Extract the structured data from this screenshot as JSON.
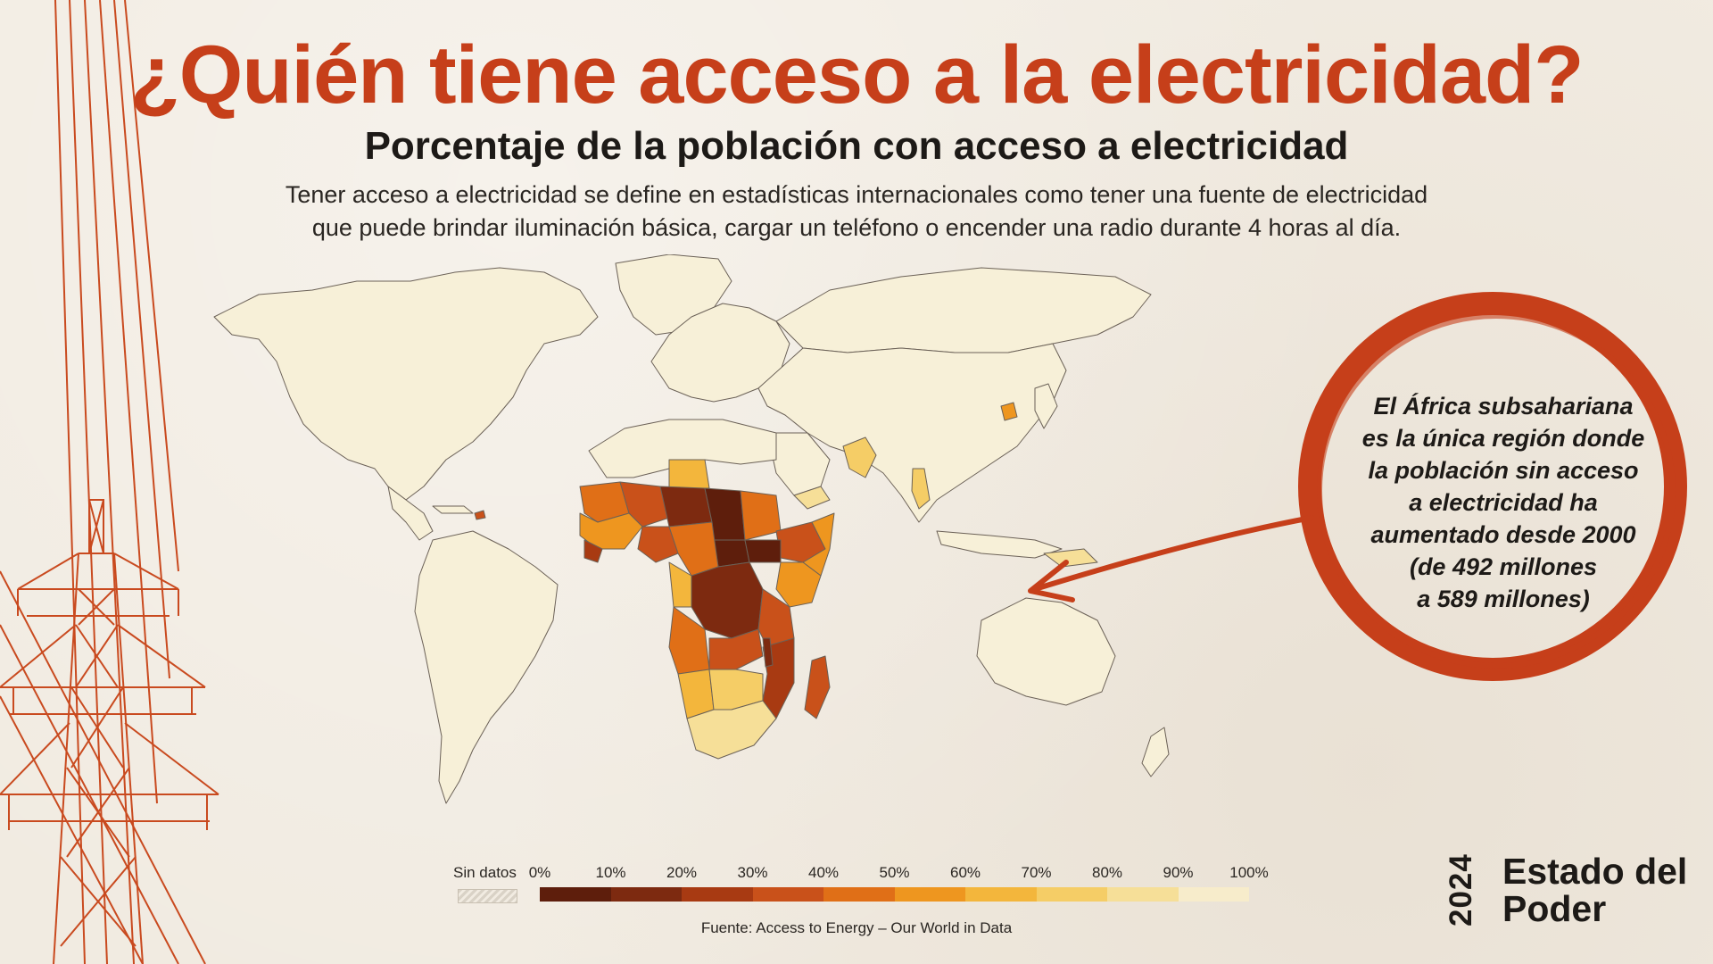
{
  "title": "¿Quién tiene acceso a la electricidad?",
  "subtitle": "Porcentaje de la población con acceso a electricidad",
  "description": [
    "Tener acceso a electricidad se define en estadísticas internacionales como tener una fuente de electricidad",
    "que puede brindar iluminación básica, cargar un teléfono o encender una radio durante 4 horas al día."
  ],
  "callout": [
    "El África subsahariana",
    "es la única región donde",
    "la población sin acceso",
    "a electricidad ha",
    "aumentado desde 2000",
    "(de 492 millones",
    "a 589 millones)"
  ],
  "legend": {
    "no_data_label": "Sin datos",
    "ticks": [
      "0%",
      "10%",
      "20%",
      "30%",
      "40%",
      "50%",
      "60%",
      "70%",
      "80%",
      "90%",
      "100%"
    ],
    "colors": [
      "#5e1e0c",
      "#7d2a10",
      "#a83a12",
      "#c9511a",
      "#e06f17",
      "#ee961f",
      "#f3b63c",
      "#f5cd66",
      "#f6df98",
      "#f7eccb"
    ]
  },
  "source": "Fuente: Access to Energy – Our World in Data",
  "brand": {
    "year": "2024",
    "name_line1": "Estado del",
    "name_line2": "Poder"
  },
  "map_colors": {
    "land_high": "#f7f0d8",
    "border": "#6b6157",
    "accent": "#c63f1a"
  }
}
